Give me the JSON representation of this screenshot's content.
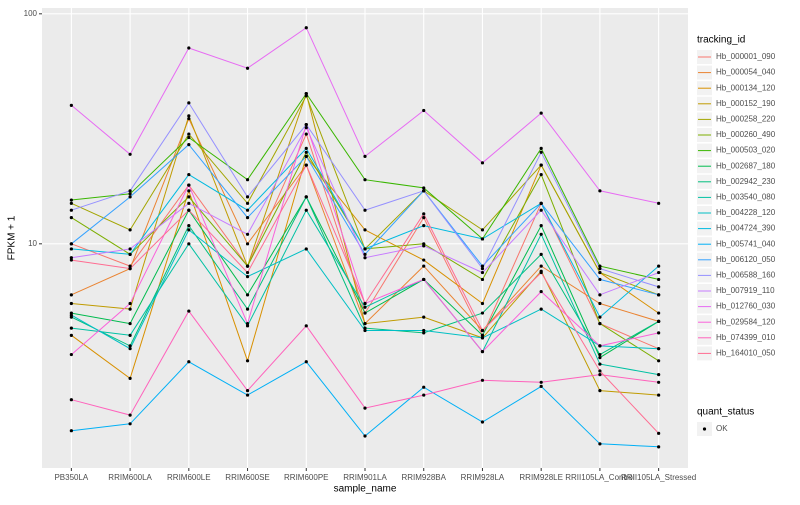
{
  "chart_data": {
    "type": "line",
    "log_y": true,
    "grid": true,
    "x_label": "sample_name",
    "y_label": "FPKM + 1",
    "legend_title": "tracking_id",
    "legend_position": "right",
    "point_legend_title": "quant_status",
    "point_legend_label": "OK",
    "point_color": "#000000",
    "categories": [
      "PB350LA",
      "RRIM600LA",
      "RRIM600LE",
      "RRIM600SE",
      "RRIM600PE",
      "RRIM901LA",
      "RRIM928BA",
      "RRIM928LA",
      "RRIM928LE",
      "RRII105LA_Control",
      "RRII105LA_Stressed"
    ],
    "ylim": [
      1.06,
      106
    ],
    "yticks": [
      10,
      100
    ],
    "series": [
      {
        "name": "Hb_000001_090",
        "color": "#F8766D",
        "values": [
          10,
          8,
          18,
          8,
          30,
          5,
          13,
          4,
          15,
          4.5,
          3.5
        ]
      },
      {
        "name": "Hb_000054_040",
        "color": "#EA8331",
        "values": [
          6,
          7.8,
          35,
          10,
          22,
          4.5,
          8,
          4.2,
          8,
          5.5,
          4.6
        ]
      },
      {
        "name": "Hb_000134_120",
        "color": "#D89000",
        "values": [
          4,
          2.6,
          17,
          3.1,
          24,
          11.5,
          8.5,
          5.5,
          22,
          7.5,
          5
        ]
      },
      {
        "name": "Hb_000152_190",
        "color": "#C09B00",
        "values": [
          5.5,
          5.2,
          36,
          8,
          45,
          4.5,
          4.8,
          3.9,
          7.6,
          2.3,
          2.2
        ]
      },
      {
        "name": "Hb_000258_220",
        "color": "#A3A500",
        "values": [
          15,
          11.5,
          30,
          15,
          44,
          9.5,
          17,
          11.5,
          22,
          7.5,
          6
        ]
      },
      {
        "name": "Hb_000260_490",
        "color": "#7CAE00",
        "values": [
          13,
          9,
          16,
          8,
          25,
          9.5,
          10,
          7,
          20,
          4.5,
          3.1
        ]
      },
      {
        "name": "Hb_000503_020",
        "color": "#39B600",
        "values": [
          15.5,
          16.5,
          29,
          19,
          45,
          19,
          17.5,
          10.5,
          26,
          8,
          7
        ]
      },
      {
        "name": "Hb_002687_180",
        "color": "#00BB4E",
        "values": [
          5,
          4.5,
          14,
          6,
          16,
          5,
          7,
          4,
          12,
          3.2,
          4.6
        ]
      },
      {
        "name": "Hb_002942_230",
        "color": "#00BF7D",
        "values": [
          4.8,
          3.6,
          12,
          5.2,
          16,
          4.3,
          4.1,
          5,
          9,
          3.3,
          4.6
        ]
      },
      {
        "name": "Hb_003540_080",
        "color": "#00C1A3",
        "values": [
          4.3,
          4,
          10,
          4.4,
          14,
          5.3,
          7,
          3.4,
          11,
          3,
          2.7
        ]
      },
      {
        "name": "Hb_004228_120",
        "color": "#00BFC4",
        "values": [
          4.9,
          3.5,
          11.5,
          7.2,
          9.5,
          4.2,
          4.2,
          3.9,
          5.2,
          3.6,
          3.5
        ]
      },
      {
        "name": "Hb_004724_390",
        "color": "#00BAE0",
        "values": [
          9.5,
          9,
          20,
          14,
          26,
          9.5,
          12,
          10.5,
          15,
          4.8,
          8
        ]
      },
      {
        "name": "Hb_005741_040",
        "color": "#00B0F6",
        "values": [
          1.54,
          1.65,
          3.07,
          2.2,
          3.07,
          1.46,
          2.38,
          1.68,
          2.4,
          1.35,
          1.31
        ]
      },
      {
        "name": "Hb_006120_050",
        "color": "#35A2FF",
        "values": [
          10,
          16,
          27,
          13,
          24,
          9,
          17,
          8,
          15,
          7,
          6
        ]
      },
      {
        "name": "Hb_006588_160",
        "color": "#9590FF",
        "values": [
          14,
          17,
          41,
          16,
          33,
          14,
          17,
          7.8,
          25,
          7.8,
          6.5
        ]
      },
      {
        "name": "Hb_007919_110",
        "color": "#C77CFF",
        "values": [
          8.7,
          9.5,
          15,
          11,
          32,
          8.7,
          9.8,
          7.5,
          14,
          6,
          7.5
        ]
      },
      {
        "name": "Hb_012760_030",
        "color": "#E76BF3",
        "values": [
          40,
          24.5,
          71,
          58,
          87,
          24,
          38,
          22.5,
          37,
          17,
          15
        ]
      },
      {
        "name": "Hb_029584_120",
        "color": "#FA62DB",
        "values": [
          3.3,
          5.5,
          18,
          4.5,
          33,
          5.5,
          7,
          3.4,
          6.2,
          3.6,
          4.1
        ]
      },
      {
        "name": "Hb_074399_010",
        "color": "#FF62BC",
        "values": [
          2.1,
          1.8,
          5.1,
          2.3,
          4.4,
          1.93,
          2.2,
          2.55,
          2.5,
          2.7,
          2.5
        ]
      },
      {
        "name": "Hb_164010_050",
        "color": "#FF6C91",
        "values": [
          8.5,
          7.8,
          14,
          7.5,
          22,
          5.5,
          13.5,
          4.2,
          7.5,
          2.8,
          1.5
        ]
      }
    ]
  }
}
